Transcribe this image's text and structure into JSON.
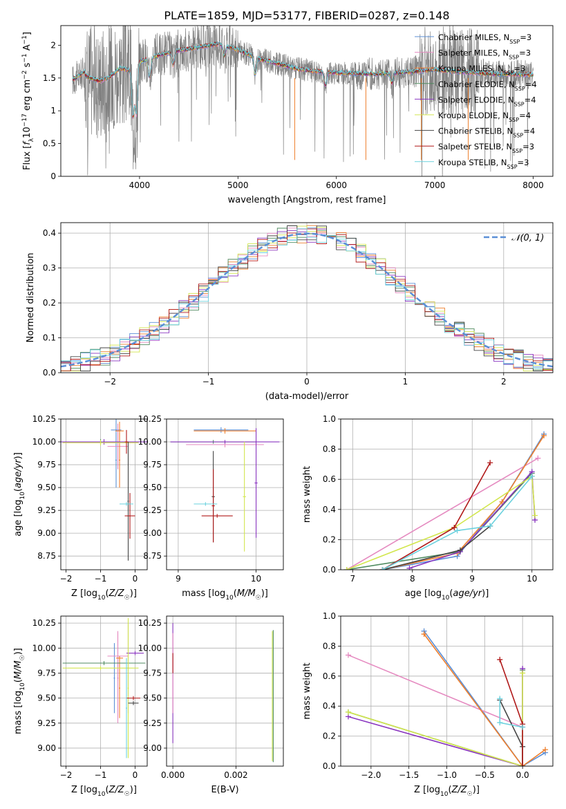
{
  "title": "PLATE=1859, MJD=53177, FIBERID=0287, z=0.148",
  "colors": {
    "Chabrier MILES": "#5b8fd6",
    "Salpeter MILES": "#e58ac0",
    "Kroupa MILES": "#ee7f2d",
    "Chabrier ELODIE": "#4f8a5f",
    "Salpeter ELODIE": "#8a36c0",
    "Kroupa ELODIE": "#d2e64d",
    "Chabrier STELIB": "#444444",
    "Salpeter STELIB": "#b01818",
    "Kroupa STELIB": "#6ad1de",
    "data": "#7f7f7f",
    "normal": "#5b8fd6"
  },
  "legend_spectrum": [
    {
      "model": "Chabrier MILES",
      "pre": "Chabrier MILES, N",
      "sub": "SSP",
      "post": "=3"
    },
    {
      "model": "Salpeter MILES",
      "pre": "Salpeter MILES, N",
      "sub": "SSP",
      "post": "=3"
    },
    {
      "model": "Kroupa MILES",
      "pre": "Kroupa MILES, N",
      "sub": "SSP",
      "post": "=3"
    },
    {
      "model": "Chabrier ELODIE",
      "pre": "Chabrier ELODIE, N",
      "sub": "SSP",
      "post": "=4"
    },
    {
      "model": "Salpeter ELODIE",
      "pre": "Salpeter ELODIE, N",
      "sub": "SSP",
      "post": "=4"
    },
    {
      "model": "Kroupa ELODIE",
      "pre": "Kroupa ELODIE, N",
      "sub": "SSP",
      "post": "=4"
    },
    {
      "model": "Chabrier STELIB",
      "pre": "Chabrier STELIB, N",
      "sub": "SSP",
      "post": "=4"
    },
    {
      "model": "Salpeter STELIB",
      "pre": "Salpeter STELIB, N",
      "sub": "SSP",
      "post": "=3"
    },
    {
      "model": "Kroupa STELIB",
      "pre": "Kroupa STELIB, N",
      "sub": "SSP",
      "post": "=3"
    }
  ],
  "legend_hist": "𝒩(0, 1)",
  "chart_data": [
    {
      "type": "line",
      "name": "spectrum",
      "xlabel": "wavelength [Angstrom, rest frame]",
      "ylabel": "Flux [f_λ 10^-17 erg cm^-2 s^-1 A^-1]",
      "xlim": [
        3200,
        8200
      ],
      "ylim": [
        0,
        2.3
      ],
      "xticks": [
        4000,
        5000,
        6000,
        7000,
        8000
      ],
      "yticks": [
        0.0,
        0.5,
        1.0,
        1.5,
        2.0
      ],
      "continuum": {
        "x": [
          3300,
          3400,
          3500,
          3600,
          3700,
          3800,
          3900,
          4000,
          4100,
          4200,
          4400,
          4600,
          4800,
          5000,
          5200,
          5400,
          5600,
          5800,
          6000,
          6200,
          6400,
          6600,
          6800,
          7000,
          7200,
          7400,
          7600,
          7800,
          8000
        ],
        "y": [
          1.63,
          1.58,
          1.5,
          1.45,
          1.52,
          1.65,
          1.62,
          1.75,
          1.8,
          1.85,
          1.92,
          1.97,
          2.02,
          1.93,
          1.8,
          1.72,
          1.64,
          1.6,
          1.58,
          1.57,
          1.56,
          1.58,
          1.6,
          1.63,
          1.6,
          1.58,
          1.56,
          1.56,
          1.55
        ]
      },
      "absorption_lines": [
        [
          3934,
          0.75
        ],
        [
          3968,
          0.75
        ],
        [
          4102,
          0.3
        ],
        [
          4341,
          0.2
        ],
        [
          4861,
          0.15
        ],
        [
          5175,
          0.25
        ],
        [
          5890,
          0.2
        ],
        [
          6563,
          0.15
        ]
      ],
      "sky_lines_x": [
        5577,
        6300,
        6863,
        7340
      ]
    },
    {
      "type": "histogram",
      "name": "residuals",
      "xlabel": "(data-model)/error",
      "ylabel": "Normed distribution",
      "xlim": [
        -2.5,
        2.5
      ],
      "ylim": [
        0,
        0.43
      ],
      "xticks": [
        -2,
        -1,
        0,
        1,
        2
      ],
      "yticks": [
        0.0,
        0.1,
        0.2,
        0.3,
        0.4
      ],
      "bin_width": 0.1,
      "reference": {
        "mean": 0,
        "sigma": 1
      }
    },
    {
      "type": "errorbar",
      "name": "age-vs-Z",
      "xlabel": "Z [log10(Z/Z☉)]",
      "ylabel": "age  [log10(age/yr)]",
      "xlim": [
        -2.15,
        0.35
      ],
      "ylim": [
        8.6,
        10.25
      ],
      "xticks": [
        -2,
        -1,
        0
      ],
      "yticks": [
        8.75,
        9.0,
        9.25,
        9.5,
        9.75,
        10.0,
        10.25
      ],
      "points": [
        {
          "model": "Chabrier MILES",
          "x": -0.55,
          "xe": 0.15,
          "y": 10.13,
          "ye": 0.12
        },
        {
          "model": "Chabrier MILES",
          "x": -0.55,
          "xe": 0.02,
          "y": 9.8,
          "ye": 0.3
        },
        {
          "model": "Salpeter MILES",
          "x": -0.5,
          "xe": 0.3,
          "y": 9.95,
          "ye": 0.25
        },
        {
          "model": "Kroupa MILES",
          "x": -0.45,
          "xe": 0.12,
          "y": 10.12,
          "ye": 0.1
        },
        {
          "model": "Kroupa MILES",
          "x": -0.45,
          "xe": 0.02,
          "y": 9.8,
          "ye": 0.3
        },
        {
          "model": "Chabrier ELODIE",
          "x": -1.0,
          "xe": 1.1,
          "y": 10.0,
          "ye": 0.03
        },
        {
          "model": "Salpeter ELODIE",
          "x": -0.9,
          "xe": 1.25,
          "y": 10.0,
          "ye": 0.03
        },
        {
          "model": "Kroupa ELODIE",
          "x": -1.0,
          "xe": 1.1,
          "y": 9.99,
          "ye": 0.03
        },
        {
          "model": "Chabrier STELIB",
          "x": -0.2,
          "xe": 0.02,
          "y": 9.35,
          "ye": 0.65
        },
        {
          "model": "Salpeter STELIB",
          "x": -0.25,
          "xe": 0.05,
          "y": 10.0,
          "ye": 0.13
        },
        {
          "model": "Salpeter STELIB",
          "x": -0.15,
          "xe": 0.15,
          "y": 9.19,
          "ye": 0.25
        },
        {
          "model": "Kroupa STELIB",
          "x": -0.25,
          "xe": 0.2,
          "y": 9.32,
          "ye": 0.02
        }
      ]
    },
    {
      "type": "errorbar",
      "name": "age-vs-mass",
      "xlabel": "mass [log10(M/M☉)]",
      "ylabel": "",
      "xlim": [
        8.85,
        10.35
      ],
      "ylim": [
        8.6,
        10.25
      ],
      "xticks": [
        9,
        10
      ],
      "yticks": [
        8.75,
        9.0,
        9.25,
        9.5,
        9.75,
        10.0,
        10.25
      ],
      "points": [
        {
          "model": "Chabrier MILES",
          "x": 9.55,
          "xe": 0.35,
          "y": 10.13,
          "ye": 0.03
        },
        {
          "model": "Salpeter MILES",
          "x": 9.6,
          "xe": 0.5,
          "y": 9.97,
          "ye": 0.03
        },
        {
          "model": "Kroupa MILES",
          "x": 9.6,
          "xe": 0.4,
          "y": 10.12,
          "ye": 0.03
        },
        {
          "model": "Chabrier ELODIE",
          "x": 9.45,
          "xe": 0.55,
          "y": 10.0,
          "ye": 0.02
        },
        {
          "model": "Salpeter ELODIE",
          "x": 9.6,
          "xe": 0.7,
          "y": 10.0,
          "ye": 0.02
        },
        {
          "model": "Salpeter ELODIE",
          "x": 10.0,
          "xe": 0.02,
          "y": 9.55,
          "ye": 0.6
        },
        {
          "model": "Kroupa ELODIE",
          "x": 9.85,
          "xe": 0.02,
          "y": 9.4,
          "ye": 0.6
        },
        {
          "model": "Chabrier STELIB",
          "x": 9.45,
          "xe": 0.02,
          "y": 9.4,
          "ye": 0.5
        },
        {
          "model": "Salpeter STELIB",
          "x": 9.45,
          "xe": 0.02,
          "y": 9.3,
          "ye": 0.4
        },
        {
          "model": "Salpeter STELIB",
          "x": 9.5,
          "xe": 0.2,
          "y": 9.19,
          "ye": 0.02
        },
        {
          "model": "Kroupa STELIB",
          "x": 9.35,
          "xe": 0.15,
          "y": 9.32,
          "ye": 0.02
        }
      ]
    },
    {
      "type": "line",
      "name": "mass-weight-vs-age",
      "xlabel": "age  [log10(age/yr)]",
      "ylabel": "mass weight",
      "xlim": [
        6.8,
        10.35
      ],
      "ylim": [
        0,
        1.0
      ],
      "xticks": [
        7,
        8,
        9,
        10
      ],
      "yticks": [
        0.0,
        0.2,
        0.4,
        0.6,
        0.8,
        1.0
      ],
      "series": [
        {
          "model": "Chabrier MILES",
          "x": [
            7.5,
            8.75,
            9.5,
            10.2
          ],
          "y": [
            0.0,
            0.09,
            0.45,
            0.9
          ]
        },
        {
          "model": "Salpeter MILES",
          "x": [
            6.9,
            10.1
          ],
          "y": [
            0.0,
            0.74
          ]
        },
        {
          "model": "Kroupa MILES",
          "x": [
            7.5,
            8.75,
            9.5,
            10.2
          ],
          "y": [
            0.0,
            0.11,
            0.45,
            0.89
          ]
        },
        {
          "model": "Chabrier ELODIE",
          "x": [
            6.9,
            8.8,
            10.0
          ],
          "y": [
            0.0,
            0.12,
            0.64
          ]
        },
        {
          "model": "Salpeter ELODIE",
          "x": [
            7.95,
            8.8,
            10.0,
            10.05
          ],
          "y": [
            0.01,
            0.12,
            0.65,
            0.33
          ]
        },
        {
          "model": "Kroupa ELODIE",
          "x": [
            6.9,
            8.7,
            10.0,
            10.05
          ],
          "y": [
            0.0,
            0.28,
            0.62,
            0.36
          ]
        },
        {
          "model": "Chabrier STELIB",
          "x": [
            7.5,
            8.8,
            9.3
          ],
          "y": [
            0.0,
            0.13,
            0.29
          ]
        },
        {
          "model": "Salpeter STELIB",
          "x": [
            7.5,
            8.7,
            9.3
          ],
          "y": [
            0.0,
            0.28,
            0.71
          ]
        },
        {
          "model": "Kroupa STELIB",
          "x": [
            7.5,
            8.75,
            9.3,
            10.0
          ],
          "y": [
            0.0,
            0.26,
            0.29,
            0.62
          ]
        }
      ]
    },
    {
      "type": "errorbar",
      "name": "mass-vs-Z",
      "xlabel": "Z [log10(Z/Z☉)]",
      "ylabel": "mass [log10(M/M☉)]",
      "xlim": [
        -2.15,
        0.35
      ],
      "ylim": [
        8.82,
        10.32
      ],
      "xticks": [
        -2,
        -1,
        0
      ],
      "yticks": [
        9.0,
        9.25,
        9.5,
        9.75,
        10.0,
        10.25
      ],
      "points": [
        {
          "model": "Chabrier MILES",
          "x": -0.6,
          "xe": 0.02,
          "y": 9.7,
          "ye": 0.35
        },
        {
          "model": "Salpeter MILES",
          "x": -0.5,
          "xe": 0.3,
          "y": 9.92,
          "ye": 0.25
        },
        {
          "model": "Salpeter MILES",
          "x": -0.5,
          "xe": 0.02,
          "y": 9.7,
          "ye": 0.45
        },
        {
          "model": "Kroupa MILES",
          "x": -0.45,
          "xe": 0.1,
          "y": 9.9,
          "ye": 0.02
        },
        {
          "model": "Kroupa MILES",
          "x": -0.45,
          "xe": 0.02,
          "y": 9.6,
          "ye": 0.3
        },
        {
          "model": "Chabrier ELODIE",
          "x": -0.9,
          "xe": 1.2,
          "y": 9.85,
          "ye": 0.02
        },
        {
          "model": "Salpeter ELODIE",
          "x": 0.0,
          "xe": 0.25,
          "y": 9.95,
          "ye": 0.02
        },
        {
          "model": "Salpeter ELODIE",
          "x": -0.2,
          "xe": 0.02,
          "y": 9.8,
          "ye": 0.45
        },
        {
          "model": "Kroupa ELODIE",
          "x": -1.0,
          "xe": 1.1,
          "y": 9.8,
          "ye": 0.02
        },
        {
          "model": "Kroupa ELODIE",
          "x": -0.2,
          "xe": 0.02,
          "y": 9.6,
          "ye": 0.7
        },
        {
          "model": "Chabrier STELIB",
          "x": -0.05,
          "xe": 0.15,
          "y": 9.45,
          "ye": 0.02
        },
        {
          "model": "Salpeter STELIB",
          "x": -0.05,
          "xe": 0.2,
          "y": 9.5,
          "ye": 0.02
        },
        {
          "model": "Kroupa STELIB",
          "x": -0.25,
          "xe": 0.02,
          "y": 9.4,
          "ye": 0.5
        }
      ]
    },
    {
      "type": "errorbar",
      "name": "mass-vs-EBV",
      "xlabel": "E(B-V)",
      "ylabel": "",
      "xlim": [
        -0.0002,
        0.0035
      ],
      "ylim": [
        8.82,
        10.32
      ],
      "xticks": [
        0.0,
        0.002
      ],
      "yticks": [
        9.0,
        9.25,
        9.5,
        9.75,
        10.0,
        10.25
      ],
      "points": [
        {
          "model": "Salpeter ELODIE",
          "x": 0.0,
          "xe": 0.0,
          "y": 9.65,
          "ye": 0.6
        },
        {
          "model": "Salpeter MILES",
          "x": 0.0,
          "xe": 0.0,
          "y": 9.75,
          "ye": 0.4
        },
        {
          "model": "Salpeter STELIB",
          "x": 0.0,
          "xe": 0.0,
          "y": 9.85,
          "ye": 0.1
        },
        {
          "model": "Kroupa ELODIE",
          "x": 0.00315,
          "xe": 0.0,
          "y": 9.52,
          "ye": 0.65
        },
        {
          "model": "Chabrier ELODIE",
          "x": 0.00318,
          "xe": 0.0,
          "y": 9.52,
          "ye": 0.66
        }
      ]
    },
    {
      "type": "line",
      "name": "mass-weight-vs-Z",
      "xlabel": "Z [log10(Z/Z☉)]",
      "ylabel": "mass weight",
      "xlim": [
        -2.4,
        0.4
      ],
      "ylim": [
        0,
        1.0
      ],
      "xticks": [
        -2.0,
        -1.5,
        -1.0,
        -0.5,
        0.0
      ],
      "yticks": [
        0.0,
        0.2,
        0.4,
        0.6,
        0.8,
        1.0
      ],
      "series": [
        {
          "model": "Chabrier MILES",
          "x": [
            -1.3,
            0.0,
            0.3
          ],
          "y": [
            0.9,
            0.0,
            0.09
          ]
        },
        {
          "model": "Salpeter MILES",
          "x": [
            -2.3,
            0.0
          ],
          "y": [
            0.74,
            0.26
          ]
        },
        {
          "model": "Kroupa MILES",
          "x": [
            -1.3,
            0.0,
            0.3
          ],
          "y": [
            0.88,
            0.0,
            0.11
          ]
        },
        {
          "model": "Chabrier ELODIE",
          "x": [
            -2.3,
            0.0,
            0.0
          ],
          "y": [
            0.36,
            0.0,
            0.64
          ]
        },
        {
          "model": "Salpeter ELODIE",
          "x": [
            -2.3,
            0.0,
            0.0
          ],
          "y": [
            0.33,
            0.0,
            0.65
          ]
        },
        {
          "model": "Kroupa ELODIE",
          "x": [
            -2.3,
            0.0,
            0.0
          ],
          "y": [
            0.36,
            0.0,
            0.62
          ]
        },
        {
          "model": "Chabrier STELIB",
          "x": [
            -0.3,
            0.0,
            0.0
          ],
          "y": [
            0.44,
            0.13,
            0.0
          ]
        },
        {
          "model": "Salpeter STELIB",
          "x": [
            -0.3,
            0.0,
            0.0
          ],
          "y": [
            0.71,
            0.28,
            0.0
          ]
        },
        {
          "model": "Kroupa STELIB",
          "x": [
            -0.3,
            -0.3,
            0.0
          ],
          "y": [
            0.45,
            0.29,
            0.26
          ]
        }
      ]
    }
  ]
}
